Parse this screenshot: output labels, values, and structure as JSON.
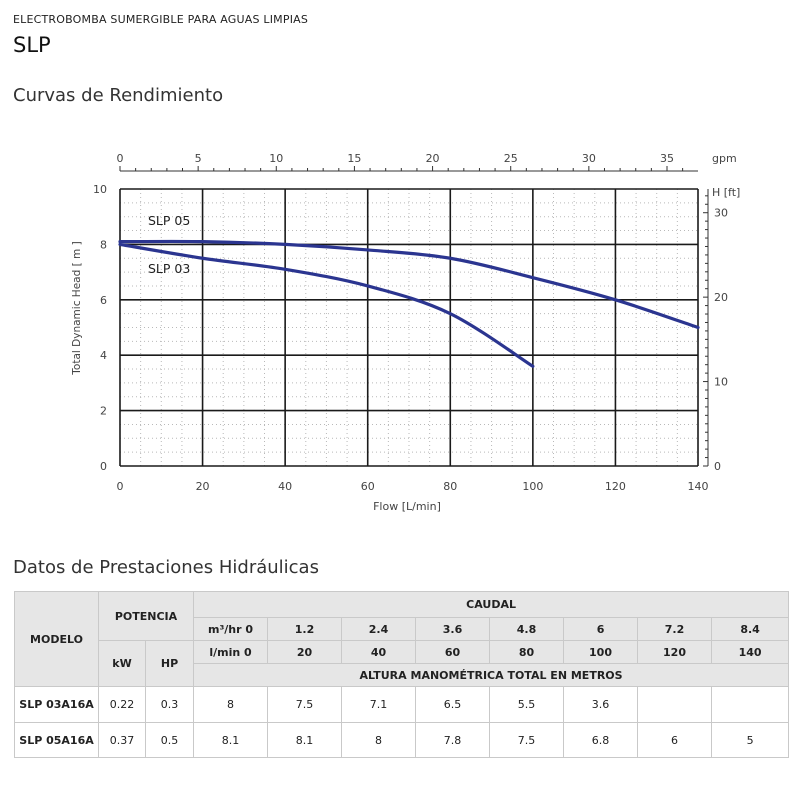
{
  "header": {
    "subtitle": "ELECTROBOMBA SUMERGIBLE PARA AGUAS LIMPIAS",
    "model": "SLP"
  },
  "sections": {
    "curves_title": "Curvas de Rendimiento",
    "table_title": "Datos de Prestaciones Hidráulicas"
  },
  "chart_data": {
    "type": "line",
    "xlabel": "Flow [L/min]",
    "ylabel": "Total Dynamic Head  [ m ]",
    "xlim": [
      0,
      140
    ],
    "ylim": [
      0,
      10
    ],
    "x_ticks": [
      0,
      20,
      40,
      60,
      80,
      100,
      120,
      140
    ],
    "y_ticks": [
      0,
      2,
      4,
      6,
      8,
      10
    ],
    "top_axis": {
      "label": "gpm",
      "ticks": [
        0,
        5,
        10,
        15,
        20,
        25,
        30,
        35
      ]
    },
    "right_axis": {
      "label": "H [ft]",
      "ticks": [
        0,
        10,
        20,
        30
      ]
    },
    "grid": true,
    "series": [
      {
        "name": "SLP 05",
        "color": "#2b3590",
        "x": [
          0,
          20,
          40,
          60,
          80,
          100,
          120,
          140
        ],
        "y": [
          8.1,
          8.1,
          8.0,
          7.8,
          7.5,
          6.8,
          6.0,
          5.0
        ]
      },
      {
        "name": "SLP 03",
        "color": "#2b3590",
        "x": [
          0,
          20,
          40,
          60,
          80,
          100
        ],
        "y": [
          8.0,
          7.5,
          7.1,
          6.5,
          5.5,
          3.6
        ]
      }
    ]
  },
  "table": {
    "modelo_header": "MODELO",
    "potencia_header": "POTENCIA",
    "kw_header": "kW",
    "hp_header": "HP",
    "caudal_header": "CAUDAL",
    "m3_row": [
      "m³/hr  0",
      "1.2",
      "2.4",
      "3.6",
      "4.8",
      "6",
      "7.2",
      "8.4"
    ],
    "lmin_row": [
      "l/min  0",
      "20",
      "40",
      "60",
      "80",
      "100",
      "120",
      "140"
    ],
    "altura_header": "ALTURA MANOMÉTRICA TOTAL EN METROS",
    "rows": [
      {
        "model": "SLP 03A16A",
        "kw": "0.22",
        "hp": "0.3",
        "values": [
          "8",
          "7.5",
          "7.1",
          "6.5",
          "5.5",
          "3.6",
          "",
          ""
        ]
      },
      {
        "model": "SLP 05A16A",
        "kw": "0.37",
        "hp": "0.5",
        "values": [
          "8.1",
          "8.1",
          "8",
          "7.8",
          "7.5",
          "6.8",
          "6",
          "5"
        ]
      }
    ]
  }
}
